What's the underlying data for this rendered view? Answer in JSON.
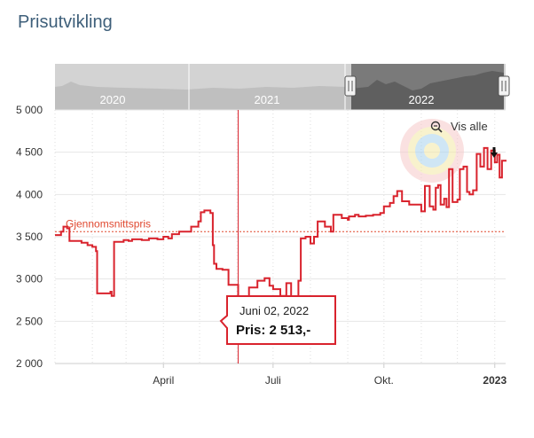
{
  "title": "Prisutvikling",
  "navigator": {
    "years": [
      "2020",
      "2021",
      "2022"
    ]
  },
  "vis_alle": "Vis alle",
  "tooltip": {
    "date": "Juni 02, 2022",
    "price": "Pris: 2 513,-"
  },
  "colors": {
    "series": "#d9232d",
    "average": "#e0482f",
    "title": "#3e5f7a"
  },
  "chart_data": {
    "type": "line",
    "series": [
      {
        "name": "Gjennomsnittspris",
        "points": [
          [
            "2022-01-01",
            3520
          ],
          [
            "2022-01-06",
            3560
          ],
          [
            "2022-01-08",
            3620
          ],
          [
            "2022-01-11",
            3600
          ],
          [
            "2022-01-13",
            3450
          ],
          [
            "2022-01-23",
            3430
          ],
          [
            "2022-01-28",
            3400
          ],
          [
            "2022-02-01",
            3380
          ],
          [
            "2022-02-04",
            3330
          ],
          [
            "2022-02-05",
            2830
          ],
          [
            "2022-02-10",
            2830
          ],
          [
            "2022-02-16",
            2850
          ],
          [
            "2022-02-17",
            2800
          ],
          [
            "2022-02-19",
            3440
          ],
          [
            "2022-02-27",
            3460
          ],
          [
            "2022-03-03",
            3450
          ],
          [
            "2022-03-06",
            3470
          ],
          [
            "2022-03-14",
            3460
          ],
          [
            "2022-03-20",
            3480
          ],
          [
            "2022-03-27",
            3470
          ],
          [
            "2022-04-01",
            3500
          ],
          [
            "2022-04-05",
            3480
          ],
          [
            "2022-04-08",
            3530
          ],
          [
            "2022-04-14",
            3560
          ],
          [
            "2022-04-20",
            3560
          ],
          [
            "2022-04-24",
            3620
          ],
          [
            "2022-04-30",
            3680
          ],
          [
            "2022-05-02",
            3790
          ],
          [
            "2022-05-05",
            3810
          ],
          [
            "2022-05-10",
            3780
          ],
          [
            "2022-05-12",
            3400
          ],
          [
            "2022-05-13",
            3180
          ],
          [
            "2022-05-15",
            3120
          ],
          [
            "2022-05-20",
            3110
          ],
          [
            "2022-05-25",
            2930
          ],
          [
            "2022-06-02",
            2513
          ],
          [
            "2022-06-06",
            2580
          ],
          [
            "2022-06-11",
            2900
          ],
          [
            "2022-06-18",
            2980
          ],
          [
            "2022-06-24",
            3010
          ],
          [
            "2022-06-28",
            2920
          ],
          [
            "2022-07-01",
            2880
          ],
          [
            "2022-07-07",
            2800
          ],
          [
            "2022-07-12",
            2950
          ],
          [
            "2022-07-16",
            2740
          ],
          [
            "2022-07-22",
            2980
          ],
          [
            "2022-07-24",
            3480
          ],
          [
            "2022-07-28",
            3500
          ],
          [
            "2022-08-01",
            3420
          ],
          [
            "2022-08-04",
            3500
          ],
          [
            "2022-08-07",
            3680
          ],
          [
            "2022-08-13",
            3620
          ],
          [
            "2022-08-18",
            3560
          ],
          [
            "2022-08-20",
            3760
          ],
          [
            "2022-08-27",
            3720
          ],
          [
            "2022-09-01",
            3700
          ],
          [
            "2022-09-02",
            3740
          ],
          [
            "2022-09-07",
            3760
          ],
          [
            "2022-09-10",
            3740
          ],
          [
            "2022-09-16",
            3750
          ],
          [
            "2022-09-22",
            3760
          ],
          [
            "2022-09-28",
            3780
          ],
          [
            "2022-10-01",
            3860
          ],
          [
            "2022-10-06",
            3900
          ],
          [
            "2022-10-09",
            3980
          ],
          [
            "2022-10-12",
            4040
          ],
          [
            "2022-10-16",
            3920
          ],
          [
            "2022-10-22",
            3880
          ],
          [
            "2022-10-28",
            3880
          ],
          [
            "2022-11-01",
            3800
          ],
          [
            "2022-11-04",
            4100
          ],
          [
            "2022-11-08",
            3860
          ],
          [
            "2022-11-11",
            3820
          ],
          [
            "2022-11-13",
            4080
          ],
          [
            "2022-11-15",
            4110
          ],
          [
            "2022-11-17",
            3880
          ],
          [
            "2022-11-20",
            3950
          ],
          [
            "2022-11-22",
            3850
          ],
          [
            "2022-11-24",
            4300
          ],
          [
            "2022-11-27",
            3910
          ],
          [
            "2022-12-01",
            3940
          ],
          [
            "2022-12-03",
            4300
          ],
          [
            "2022-12-06",
            4330
          ],
          [
            "2022-12-09",
            4030
          ],
          [
            "2022-12-11",
            4000
          ],
          [
            "2022-12-14",
            4050
          ],
          [
            "2022-12-17",
            4480
          ],
          [
            "2022-12-20",
            4330
          ],
          [
            "2022-12-23",
            4550
          ],
          [
            "2022-12-26",
            4300
          ],
          [
            "2022-12-29",
            4520
          ],
          [
            "2023-01-01",
            4380
          ],
          [
            "2023-01-03",
            4470
          ],
          [
            "2023-01-05",
            4200
          ],
          [
            "2023-01-07",
            4400
          ],
          [
            "2023-01-10",
            4390
          ]
        ]
      }
    ],
    "average": {
      "label": "Gjennomsnittspris",
      "value": 3560
    },
    "y_ticks": [
      "5 000",
      "4 500",
      "4 000",
      "3 500",
      "3 000",
      "2 500",
      "2 000"
    ],
    "ylim": [
      2000,
      5000
    ],
    "x_ticks": [
      {
        "label": "April",
        "date": "2022-04-01",
        "bold": false
      },
      {
        "label": "Juli",
        "date": "2022-07-01",
        "bold": false
      },
      {
        "label": "Okt.",
        "date": "2022-10-01",
        "bold": false
      },
      {
        "label": "2023",
        "date": "2023-01-01",
        "bold": true
      }
    ],
    "xlim": [
      "2022-01-01",
      "2023-01-10"
    ],
    "selected": {
      "date": "2022-06-02",
      "value": 2513
    }
  }
}
